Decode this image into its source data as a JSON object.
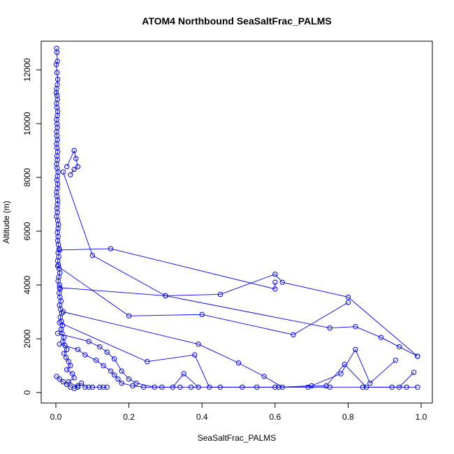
{
  "chart_data": {
    "type": "scatter",
    "title": "ATOM4 Northbound SeaSaltFrac_PALMS",
    "xlabel": "SeaSaltFrac_PALMS",
    "ylabel": "Altitude (m)",
    "xlim": [
      0,
      1
    ],
    "ylim": [
      0,
      12800
    ],
    "x_ticks": [
      0.0,
      0.2,
      0.4,
      0.6,
      0.8,
      1.0
    ],
    "x_tick_labels": [
      "0.0",
      "0.2",
      "0.4",
      "0.6",
      "0.8",
      "1.0"
    ],
    "y_ticks": [
      0,
      2000,
      4000,
      6000,
      8000,
      10000,
      12000
    ],
    "y_tick_labels": [
      "0",
      "2000",
      "4000",
      "6000",
      "8000",
      "10000",
      "12000"
    ],
    "grid": false,
    "legend": "none",
    "color": "#0000ff",
    "series": [
      {
        "x": [
          0.002,
          0.003,
          0.004,
          0.001,
          0.003,
          0.005,
          0.004,
          0.002,
          0.001,
          0.003,
          0.004,
          0.002,
          0.003,
          0.005,
          0.004,
          0.002,
          0.003,
          0.004,
          0.002,
          0.003,
          0.004,
          0.002,
          0.003,
          0.005,
          0.003,
          0.004,
          0.002,
          0.003,
          0.006,
          0.004,
          0.003,
          0.005,
          0.004,
          0.002,
          0.003,
          0.005,
          0.004,
          0.003,
          0.004,
          0.002,
          0.005,
          0.007,
          0.006,
          0.004,
          0.006,
          0.005,
          0.007,
          0.009,
          0.006,
          0.008,
          0.005,
          0.007,
          0.009,
          0.011,
          0.008,
          0.006,
          0.01,
          0.012,
          0.009,
          0.011,
          0.014,
          0.01,
          0.013,
          0.016,
          0.012,
          0.015,
          0.018,
          0.014,
          0.017,
          0.022,
          0.019,
          0.025,
          0.03,
          0.022,
          0.028,
          0.035,
          0.04,
          0.03,
          0.045,
          0.05,
          0.035,
          0.06
        ],
        "y": [
          12800,
          12650,
          12320,
          12200,
          11900,
          11650,
          11450,
          11300,
          11150,
          11050,
          10900,
          10750,
          10600,
          10450,
          10300,
          10150,
          10000,
          9850,
          9700,
          9550,
          9400,
          9250,
          9100,
          8950,
          8800,
          8650,
          8500,
          8350,
          8200,
          8050,
          7900,
          7750,
          7600,
          7450,
          7300,
          7150,
          7000,
          6850,
          6700,
          6550,
          6400,
          6250,
          6100,
          5950,
          5800,
          5650,
          5500,
          5350,
          5200,
          5050,
          4900,
          4750,
          4600,
          4450,
          4300,
          4150,
          4000,
          3850,
          3700,
          3550,
          3400,
          3250,
          3100,
          2950,
          2800,
          2650,
          2500,
          2350,
          2200,
          2050,
          1900,
          1750,
          1600,
          1450,
          1300,
          1150,
          1000,
          850,
          700,
          550,
          400,
          200
        ]
      },
      {
        "x": [
          0.02,
          0.1,
          0.3,
          0.45,
          0.6,
          0.62,
          0.8,
          0.99
        ],
        "y": [
          8200,
          5100,
          3600,
          3650,
          4400,
          4100,
          3550,
          1350
        ]
      },
      {
        "x": [
          0.01,
          0.15,
          0.6,
          0.6
        ],
        "y": [
          5300,
          5350,
          3850,
          4100
        ]
      },
      {
        "x": [
          0.005,
          0.2,
          0.4,
          0.65,
          0.8
        ],
        "y": [
          4700,
          2850,
          2900,
          2150,
          3350
        ]
      },
      {
        "x": [
          0.01,
          0.3,
          0.75,
          0.82,
          0.89,
          0.94,
          0.99
        ],
        "y": [
          3900,
          3600,
          2400,
          2450,
          2050,
          1700,
          1350
        ]
      },
      {
        "x": [
          0.02,
          0.39,
          0.5,
          0.57,
          0.62,
          0.7,
          0.78,
          0.82,
          0.86,
          0.93
        ],
        "y": [
          3000,
          1800,
          1100,
          600,
          200,
          250,
          700,
          1600,
          350,
          1200
        ]
      },
      {
        "x": [
          0.01,
          0.25,
          0.38,
          0.42,
          0.6,
          0.74,
          0.79,
          0.85,
          0.94,
          0.98
        ],
        "y": [
          2600,
          1150,
          1400,
          200,
          200,
          250,
          1050,
          200,
          200,
          750
        ]
      },
      {
        "x": [
          0.005,
          0.09,
          0.12,
          0.14,
          0.16,
          0.18,
          0.2,
          0.22,
          0.27,
          0.32,
          0.35,
          0.39
        ],
        "y": [
          2200,
          1900,
          1700,
          1500,
          1250,
          800,
          500,
          350,
          200,
          200,
          700,
          200
        ]
      },
      {
        "x": [
          0.01,
          0.06,
          0.08,
          0.11,
          0.13,
          0.15,
          0.16,
          0.17,
          0.18,
          0.21,
          0.24,
          0.29,
          0.34,
          0.37,
          0.45,
          0.51,
          0.55,
          0.61,
          0.69,
          0.75,
          0.84,
          0.92,
          0.96,
          0.99
        ],
        "y": [
          1800,
          1600,
          1400,
          1200,
          1000,
          800,
          650,
          500,
          350,
          250,
          200,
          200,
          200,
          200,
          200,
          200,
          200,
          200,
          200,
          200,
          200,
          200,
          200,
          200
        ]
      },
      {
        "x": [
          0.002,
          0.01,
          0.02,
          0.03,
          0.04,
          0.05,
          0.06,
          0.07,
          0.08,
          0.09,
          0.1,
          0.12,
          0.13,
          0.14
        ],
        "y": [
          600,
          500,
          400,
          300,
          200,
          150,
          250,
          350,
          200,
          200,
          200,
          200,
          200,
          200
        ]
      },
      {
        "x": [
          0.03,
          0.05,
          0.055,
          0.06,
          0.05,
          0.04
        ],
        "y": [
          8400,
          9000,
          8700,
          8400,
          8300,
          8100
        ]
      }
    ]
  }
}
